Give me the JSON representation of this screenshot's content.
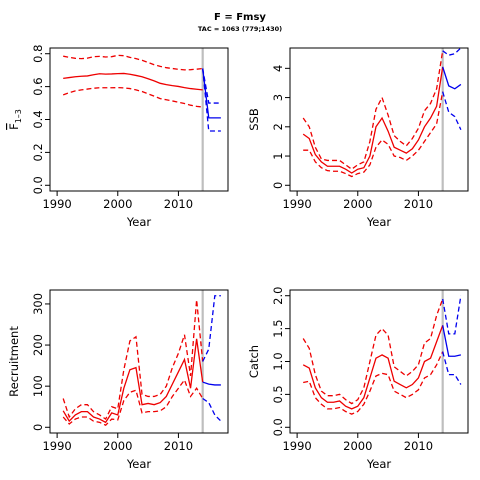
{
  "figure": {
    "title": "F = Fmsy",
    "subtitle": "TAC = 1063 (779;1430)"
  },
  "colors": {
    "historical": "#ee0000",
    "forecast": "#0000ee",
    "divider": "#bebebe",
    "axes": "#000000"
  },
  "chart_data": [
    {
      "type": "line",
      "ylabel": "F̅ 1–3",
      "ylabel_main": "F",
      "ylabel_sub": "1–3",
      "xlabel": "Year",
      "xlim": [
        1990,
        2017
      ],
      "ylim": [
        0,
        0.8
      ],
      "xticks": [
        1990,
        2000,
        2010
      ],
      "yticks": [
        0.0,
        0.2,
        0.4,
        0.6,
        0.8
      ],
      "ytick_labels": [
        "0.0",
        "0.2",
        "0.4",
        "0.6",
        "0.8"
      ],
      "divider_x": 2014,
      "historical": {
        "x": [
          1991,
          1992,
          1993,
          1994,
          1995,
          1996,
          1997,
          1998,
          1999,
          2000,
          2001,
          2002,
          2003,
          2004,
          2005,
          2006,
          2007,
          2008,
          2009,
          2010,
          2011,
          2012,
          2013,
          2014
        ],
        "mid": [
          0.65,
          0.655,
          0.66,
          0.663,
          0.665,
          0.672,
          0.678,
          0.676,
          0.677,
          0.679,
          0.68,
          0.675,
          0.668,
          0.66,
          0.648,
          0.635,
          0.62,
          0.612,
          0.606,
          0.601,
          0.594,
          0.588,
          0.584,
          0.58
        ],
        "lower": [
          0.55,
          0.563,
          0.574,
          0.58,
          0.585,
          0.59,
          0.593,
          0.593,
          0.593,
          0.594,
          0.592,
          0.588,
          0.58,
          0.57,
          0.556,
          0.542,
          0.527,
          0.52,
          0.513,
          0.505,
          0.497,
          0.487,
          0.48,
          0.476
        ],
        "upper": [
          0.785,
          0.778,
          0.772,
          0.77,
          0.773,
          0.782,
          0.784,
          0.78,
          0.782,
          0.79,
          0.788,
          0.778,
          0.77,
          0.76,
          0.747,
          0.733,
          0.723,
          0.715,
          0.71,
          0.705,
          0.702,
          0.703,
          0.706,
          0.71
        ]
      },
      "forecast": {
        "x": [
          2014,
          2015,
          2016,
          2017
        ],
        "mid": [
          0.71,
          0.41,
          0.41,
          0.41
        ],
        "lower": [
          0.71,
          0.33,
          0.33,
          0.33
        ],
        "upper": [
          0.71,
          0.5,
          0.5,
          0.5
        ]
      }
    },
    {
      "type": "line",
      "ylabel": "SSB",
      "xlabel": "Year",
      "xlim": [
        1990,
        2017
      ],
      "ylim": [
        0,
        4.5
      ],
      "xticks": [
        1990,
        2000,
        2010
      ],
      "yticks": [
        0,
        1,
        2,
        3,
        4
      ],
      "ytick_labels": [
        "0",
        "1",
        "2",
        "3",
        "4"
      ],
      "divider_x": 2014,
      "historical": {
        "x": [
          1991,
          1992,
          1993,
          1994,
          1995,
          1996,
          1997,
          1998,
          1999,
          2000,
          2001,
          2002,
          2003,
          2004,
          2005,
          2006,
          2007,
          2008,
          2009,
          2010,
          2011,
          2012,
          2013,
          2014
        ],
        "mid": [
          1.75,
          1.6,
          1.05,
          0.8,
          0.65,
          0.65,
          0.65,
          0.55,
          0.42,
          0.55,
          0.6,
          1.0,
          2.0,
          2.3,
          1.85,
          1.3,
          1.2,
          1.1,
          1.25,
          1.55,
          2.0,
          2.3,
          2.7,
          4.05
        ],
        "lower": [
          1.2,
          1.2,
          0.8,
          0.6,
          0.5,
          0.48,
          0.48,
          0.4,
          0.3,
          0.4,
          0.45,
          0.7,
          1.3,
          1.55,
          1.4,
          1.0,
          0.95,
          0.85,
          1.0,
          1.2,
          1.5,
          1.8,
          2.1,
          3.2
        ],
        "upper": [
          2.3,
          2.0,
          1.3,
          0.9,
          0.85,
          0.85,
          0.85,
          0.7,
          0.55,
          0.7,
          0.8,
          1.5,
          2.6,
          3.0,
          2.4,
          1.7,
          1.5,
          1.35,
          1.6,
          1.95,
          2.55,
          2.8,
          3.3,
          4.6
        ]
      },
      "forecast": {
        "x": [
          2014,
          2015,
          2016,
          2017
        ],
        "mid": [
          4.05,
          3.4,
          3.3,
          3.45
        ],
        "lower": [
          3.2,
          2.5,
          2.35,
          1.9
        ],
        "upper": [
          4.6,
          4.45,
          4.5,
          4.7
        ]
      }
    },
    {
      "type": "line",
      "ylabel": "Recruitment",
      "xlabel": "Year",
      "xlim": [
        1990,
        2017
      ],
      "ylim": [
        0,
        320
      ],
      "xticks": [
        1990,
        2000,
        2010
      ],
      "yticks": [
        0,
        100,
        200,
        300
      ],
      "ytick_labels": [
        "0",
        "100",
        "200",
        "300"
      ],
      "divider_x": 2014,
      "historical": {
        "x": [
          1991,
          1992,
          1993,
          1994,
          1995,
          1996,
          1997,
          1998,
          1999,
          2000,
          2001,
          2002,
          2003,
          2004,
          2005,
          2006,
          2007,
          2008,
          2009,
          2010,
          2011,
          2012,
          2013,
          2014
        ],
        "mid": [
          40,
          15,
          30,
          38,
          38,
          25,
          20,
          12,
          35,
          30,
          95,
          140,
          145,
          55,
          58,
          55,
          60,
          75,
          105,
          135,
          165,
          95,
          215,
          110
        ],
        "lower": [
          25,
          8,
          20,
          25,
          25,
          15,
          12,
          5,
          20,
          18,
          65,
          85,
          90,
          35,
          38,
          38,
          40,
          50,
          75,
          95,
          115,
          75,
          95,
          70
        ],
        "upper": [
          70,
          25,
          45,
          55,
          55,
          38,
          30,
          20,
          50,
          45,
          140,
          210,
          220,
          80,
          75,
          75,
          80,
          100,
          145,
          180,
          225,
          125,
          310,
          160
        ]
      },
      "forecast": {
        "x": [
          2014,
          2015,
          2016,
          2017
        ],
        "mid": [
          110,
          105,
          103,
          103
        ],
        "lower": [
          70,
          60,
          30,
          15
        ],
        "upper": [
          160,
          190,
          320,
          320
        ]
      }
    },
    {
      "type": "line",
      "ylabel": "Catch",
      "xlabel": "Year",
      "xlim": [
        1990,
        2017
      ],
      "ylim": [
        0,
        2.0
      ],
      "xticks": [
        1990,
        2000,
        2010
      ],
      "yticks": [
        0.0,
        0.5,
        1.0,
        1.5,
        2.0
      ],
      "ytick_labels": [
        "0.0",
        "0.5",
        "1.0",
        "1.5",
        "2.0"
      ],
      "divider_x": 2014,
      "historical": {
        "x": [
          1991,
          1992,
          1993,
          1994,
          1995,
          1996,
          1997,
          1998,
          1999,
          2000,
          2001,
          2002,
          2003,
          2004,
          2005,
          2006,
          2007,
          2008,
          2009,
          2010,
          2011,
          2012,
          2013,
          2014
        ],
        "mid": [
          0.95,
          0.9,
          0.6,
          0.45,
          0.38,
          0.38,
          0.4,
          0.32,
          0.28,
          0.32,
          0.45,
          0.75,
          1.05,
          1.1,
          1.05,
          0.7,
          0.65,
          0.6,
          0.65,
          0.75,
          1.0,
          1.05,
          1.3,
          1.55
        ],
        "lower": [
          0.68,
          0.7,
          0.45,
          0.35,
          0.28,
          0.28,
          0.3,
          0.24,
          0.2,
          0.24,
          0.35,
          0.55,
          0.78,
          0.82,
          0.8,
          0.55,
          0.5,
          0.45,
          0.5,
          0.57,
          0.75,
          0.8,
          0.95,
          1.15
        ],
        "upper": [
          1.35,
          1.2,
          0.8,
          0.55,
          0.48,
          0.48,
          0.5,
          0.42,
          0.36,
          0.42,
          0.6,
          1.0,
          1.4,
          1.5,
          1.4,
          0.92,
          0.85,
          0.78,
          0.85,
          0.95,
          1.28,
          1.35,
          1.7,
          1.95
        ]
      },
      "forecast": {
        "x": [
          2014,
          2015,
          2016,
          2017
        ],
        "mid": [
          1.55,
          1.08,
          1.08,
          1.1
        ],
        "lower": [
          1.15,
          0.8,
          0.8,
          0.65
        ],
        "upper": [
          1.95,
          1.42,
          1.42,
          2.0
        ]
      }
    }
  ]
}
